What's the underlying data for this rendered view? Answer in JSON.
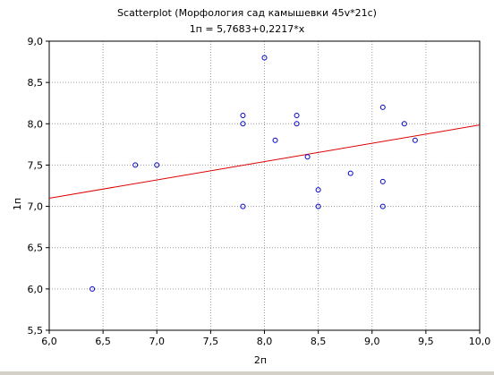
{
  "chart_data": {
    "type": "scatter",
    "title": "Scatterplot (Морфология сад камышевки 45v*21c)",
    "subtitle": "1п = 5,7683+0,2217*x",
    "xlabel": "2п",
    "ylabel": "1п",
    "xlim": [
      6.0,
      10.0
    ],
    "ylim": [
      5.5,
      9.0
    ],
    "x_ticks": [
      "6,0",
      "6,5",
      "7,0",
      "7,5",
      "8,0",
      "8,5",
      "9,0",
      "9,5",
      "10,0"
    ],
    "y_ticks": [
      "5,5",
      "6,0",
      "6,5",
      "7,0",
      "7,5",
      "8,0",
      "8,5",
      "9,0"
    ],
    "grid": true,
    "regression": {
      "intercept": 5.7683,
      "slope": 0.2217
    },
    "points": [
      {
        "x": 6.4,
        "y": 6.0
      },
      {
        "x": 6.8,
        "y": 7.5
      },
      {
        "x": 7.0,
        "y": 7.5
      },
      {
        "x": 7.8,
        "y": 8.1
      },
      {
        "x": 7.8,
        "y": 8.0
      },
      {
        "x": 7.8,
        "y": 7.0
      },
      {
        "x": 8.0,
        "y": 8.8
      },
      {
        "x": 8.1,
        "y": 7.8
      },
      {
        "x": 8.3,
        "y": 8.1
      },
      {
        "x": 8.3,
        "y": 8.0
      },
      {
        "x": 8.4,
        "y": 7.6
      },
      {
        "x": 8.5,
        "y": 7.2
      },
      {
        "x": 8.5,
        "y": 7.0
      },
      {
        "x": 8.8,
        "y": 7.4
      },
      {
        "x": 9.1,
        "y": 8.2
      },
      {
        "x": 9.1,
        "y": 7.3
      },
      {
        "x": 9.1,
        "y": 7.0
      },
      {
        "x": 9.3,
        "y": 8.0
      },
      {
        "x": 9.4,
        "y": 7.8
      }
    ],
    "colors": {
      "points": "#0000cc",
      "regression_line": "#dd0000",
      "grid": "#9a9a9a",
      "axes": "#000000"
    }
  }
}
